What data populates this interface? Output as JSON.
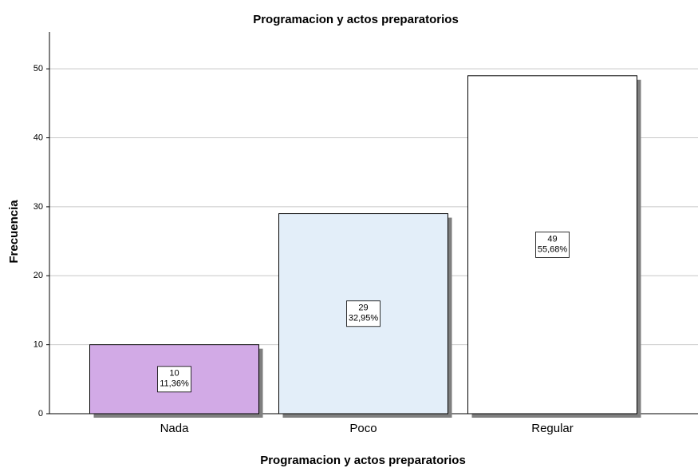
{
  "chart_data": {
    "type": "bar",
    "title": "Programacion y actos preparatorios",
    "x_label": "Programacion y actos preparatorios",
    "y_label": "Frecuencia",
    "categories": [
      "Nada",
      "Poco",
      "Regular"
    ],
    "values": [
      10,
      29,
      49
    ],
    "percent_values": [
      11.36,
      32.95,
      55.68
    ],
    "percent_value_labels": [
      "11,36%",
      "32,95%",
      "55,68%"
    ],
    "colors": [
      "#d2aae6",
      "#e3eef9",
      "#ffffff"
    ],
    "ylim": [
      0,
      55
    ],
    "yticks": [
      0,
      10,
      20,
      30,
      40,
      50
    ],
    "grid": true
  }
}
